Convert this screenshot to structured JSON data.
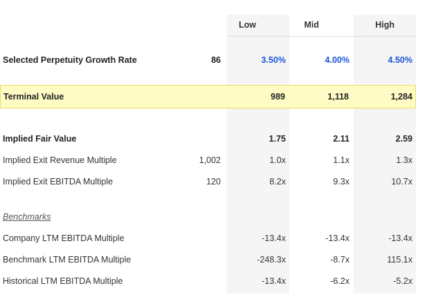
{
  "columns": [
    "Low",
    "Mid",
    "High"
  ],
  "growth_rate": {
    "label": "Selected Perpetuity Growth Rate",
    "base": "86",
    "values": [
      "3.50%",
      "4.00%",
      "4.50%"
    ]
  },
  "terminal_value": {
    "label": "Terminal Value",
    "values": [
      "989",
      "1,118",
      "1,284"
    ]
  },
  "implied_fair_value": {
    "label": "Implied Fair Value",
    "values": [
      "1.75",
      "2.11",
      "2.59"
    ]
  },
  "exit_revenue": {
    "label": "Implied Exit Revenue Multiple",
    "base": "1,002",
    "values": [
      "1.0x",
      "1.1x",
      "1.3x"
    ]
  },
  "exit_ebitda": {
    "label": "Implied Exit EBITDA Multiple",
    "base": "120",
    "values": [
      "8.2x",
      "9.3x",
      "10.7x"
    ]
  },
  "benchmarks_heading": "Benchmarks",
  "company_ltm": {
    "label": "Company LTM EBITDA Multiple",
    "values": [
      "-13.4x",
      "-13.4x",
      "-13.4x"
    ]
  },
  "benchmark_ltm": {
    "label": "Benchmark LTM EBITDA Multiple",
    "values": [
      "-248.3x",
      "-8.7x",
      "115.1x"
    ]
  },
  "historical_ltm": {
    "label": "Historical LTM EBITDA Multiple",
    "values": [
      "-13.4x",
      "-6.2x",
      "-5.2x"
    ]
  },
  "colors": {
    "accent_blue": "#1a56db",
    "highlight": "#fefcc4"
  }
}
